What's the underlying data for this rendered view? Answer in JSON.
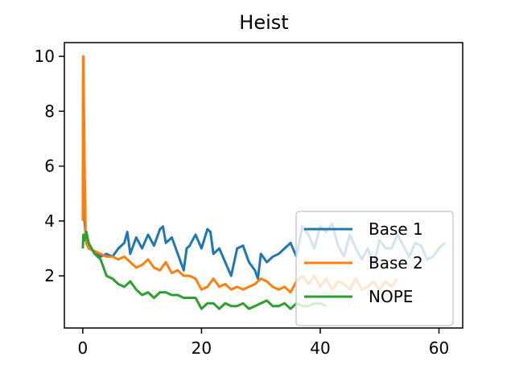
{
  "chart_data": {
    "type": "line",
    "title": "Heist",
    "xlabel": "",
    "ylabel": "",
    "xlim": [
      -3.1,
      64
    ],
    "ylim": [
      0.1,
      10.5
    ],
    "xticks": [
      0,
      20,
      40,
      60
    ],
    "yticks": [
      2,
      4,
      6,
      8,
      10
    ],
    "grid": false,
    "legend_position": "lower right",
    "series": [
      {
        "name": "Base 1",
        "color": "#1f77b4",
        "x": [
          0,
          0.1,
          0.3,
          0.6,
          1,
          2,
          3,
          4,
          5,
          6,
          7,
          7.5,
          8,
          9,
          10,
          11,
          12,
          13,
          13.5,
          14,
          15,
          16,
          17,
          17.5,
          18,
          19,
          20,
          21,
          21.5,
          22,
          23,
          24,
          25,
          26,
          27,
          28,
          29,
          29.5,
          30,
          31,
          32,
          33,
          34,
          35,
          36,
          37,
          38,
          39,
          40,
          41,
          42,
          43,
          44,
          45,
          46,
          47,
          48,
          49,
          50,
          51,
          52,
          53,
          54,
          55,
          56,
          57,
          58,
          59,
          60,
          61
        ],
        "values": [
          5.5,
          6.5,
          4.0,
          3.2,
          3.0,
          2.9,
          2.7,
          2.8,
          2.7,
          3.0,
          3.2,
          3.6,
          2.8,
          3.4,
          3.0,
          3.5,
          3.1,
          3.7,
          3.8,
          3.2,
          3.4,
          2.8,
          2.2,
          3.0,
          3.1,
          3.5,
          3.0,
          3.7,
          3.6,
          2.8,
          3.0,
          2.5,
          2.0,
          3.0,
          3.1,
          2.5,
          2.2,
          1.9,
          2.8,
          2.5,
          2.7,
          2.8,
          3.0,
          3.2,
          2.7,
          3.8,
          3.5,
          3.0,
          3.8,
          3.6,
          3.9,
          3.1,
          2.7,
          3.5,
          3.0,
          2.6,
          3.0,
          2.4,
          3.3,
          3.0,
          3.0,
          3.5,
          3.1,
          2.7,
          3.2,
          3.1,
          2.6,
          2.7,
          3.0,
          3.2
        ]
      },
      {
        "name": "Base 2",
        "color": "#ff7f0e",
        "x": [
          0,
          0.05,
          0.1,
          0.3,
          0.5,
          1,
          2,
          3,
          4,
          5,
          6,
          7,
          8,
          9,
          10,
          11,
          12,
          13,
          14,
          15,
          16,
          17,
          18,
          19,
          20,
          21,
          22,
          23,
          24,
          25,
          26,
          27,
          28,
          29,
          30,
          31,
          32,
          33,
          34,
          35,
          36,
          37,
          38,
          39,
          40,
          41,
          42,
          43,
          44,
          45,
          46,
          47,
          48,
          49,
          50,
          51,
          52,
          53
        ],
        "values": [
          4.0,
          10.0,
          10.0,
          6.0,
          3.3,
          3.0,
          2.9,
          2.8,
          2.7,
          2.7,
          2.6,
          2.7,
          2.5,
          2.3,
          2.4,
          2.6,
          2.3,
          2.2,
          2.5,
          2.1,
          2.2,
          2.0,
          2.0,
          1.9,
          1.5,
          1.6,
          1.9,
          1.6,
          1.7,
          1.5,
          1.6,
          1.5,
          1.6,
          1.7,
          1.9,
          1.8,
          1.6,
          1.5,
          1.6,
          1.4,
          1.8,
          2.0,
          1.7,
          2.0,
          1.6,
          1.9,
          1.5,
          1.8,
          1.7,
          1.5,
          1.9,
          1.5,
          1.6,
          1.8,
          1.5,
          1.8,
          1.6,
          1.9
        ]
      },
      {
        "name": "NOPE",
        "color": "#2ca02c",
        "x": [
          0,
          0.1,
          0.3,
          0.6,
          1,
          1.5,
          2,
          3,
          4,
          5,
          6,
          7,
          8,
          9,
          10,
          11,
          12,
          13,
          14,
          15,
          16,
          17,
          18,
          19,
          20,
          21,
          22,
          23,
          24,
          25,
          26,
          27,
          28,
          29,
          30,
          31,
          32,
          33,
          34,
          35,
          36,
          37,
          38,
          39,
          40,
          41
        ],
        "values": [
          3.0,
          3.5,
          3.3,
          3.6,
          3.2,
          3.0,
          2.8,
          2.6,
          2.0,
          1.9,
          1.7,
          1.6,
          1.8,
          1.5,
          1.3,
          1.4,
          1.2,
          1.4,
          1.4,
          1.3,
          1.3,
          1.2,
          1.2,
          1.2,
          0.8,
          1.0,
          1.0,
          0.8,
          1.0,
          0.9,
          0.9,
          1.0,
          0.8,
          0.9,
          1.0,
          1.1,
          0.9,
          0.9,
          1.0,
          0.8,
          1.0,
          0.9,
          0.9,
          1.0,
          1.0,
          0.9
        ]
      }
    ]
  }
}
